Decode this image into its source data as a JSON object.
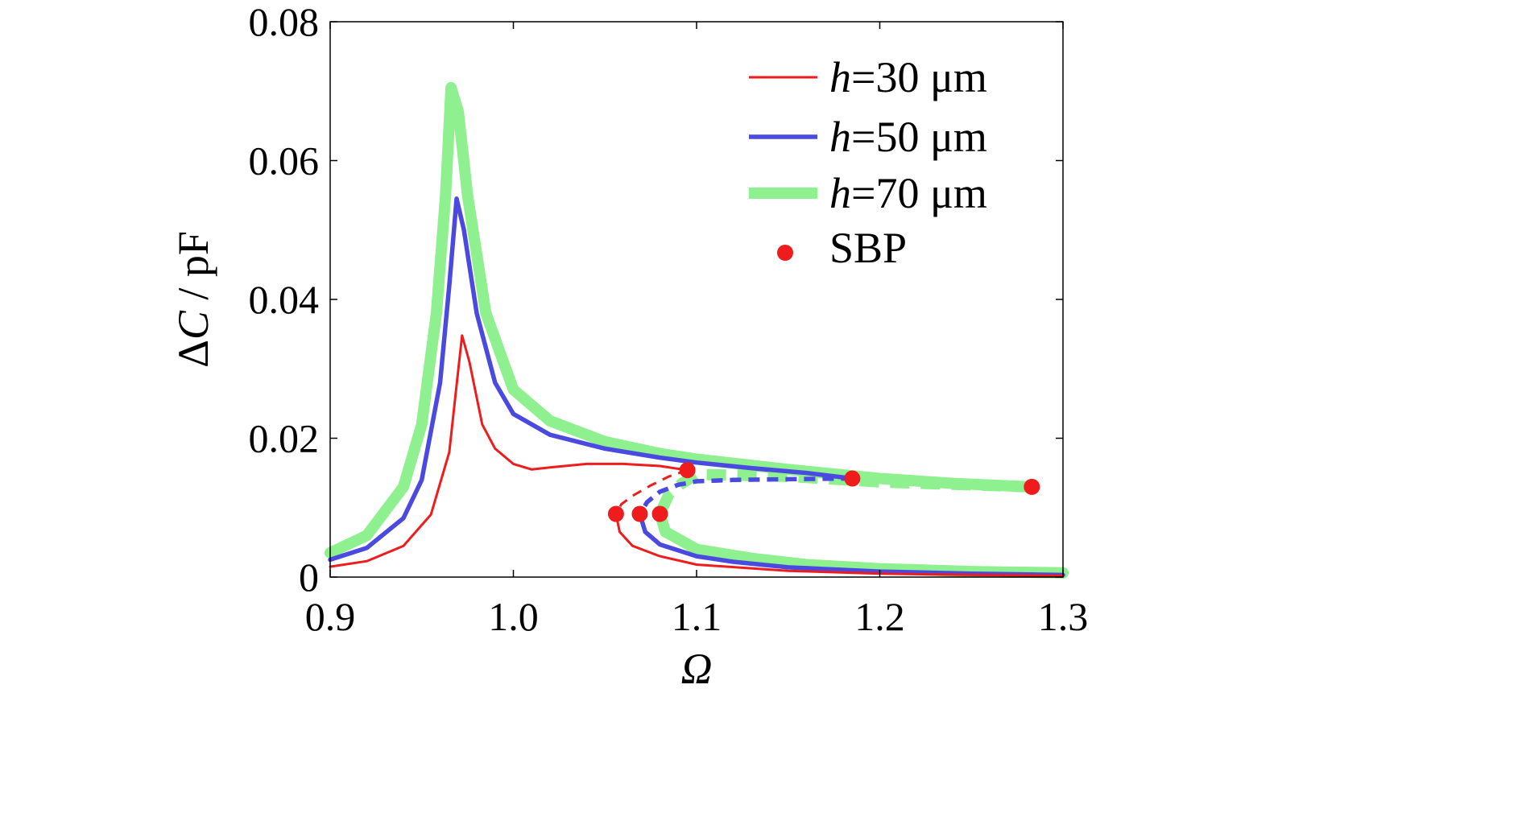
{
  "chart_data": {
    "type": "line",
    "title": "",
    "xlabel": "Ω",
    "ylabel_prefix": "ΔC",
    "ylabel": "ΔC / pF",
    "ylabel_symbol": "C",
    "ylabel_delta": "Δ",
    "ylabel_suffix": " / pF",
    "xlim": [
      0.9,
      1.3
    ],
    "ylim": [
      0,
      0.08
    ],
    "xticks": [
      0.9,
      1.0,
      1.1,
      1.2,
      1.3
    ],
    "xtick_labels": [
      "0.9",
      "1.0",
      "1.1",
      "1.2",
      "1.3"
    ],
    "yticks": [
      0,
      0.02,
      0.04,
      0.06,
      0.08
    ],
    "ytick_labels": [
      "0",
      "0.02",
      "0.04",
      "0.06",
      "0.08"
    ],
    "grid": false,
    "legend_position": "top-right",
    "series": [
      {
        "name": "h=30 μm",
        "legend_symbol": "h",
        "legend_rest": "=30 μm",
        "color": "#ee1c1c",
        "stable_upper": [
          [
            0.9,
            0.0015
          ],
          [
            0.92,
            0.0023
          ],
          [
            0.94,
            0.0045
          ],
          [
            0.955,
            0.009
          ],
          [
            0.965,
            0.018
          ],
          [
            0.97,
            0.03
          ],
          [
            0.972,
            0.0348
          ],
          [
            0.976,
            0.031
          ],
          [
            0.983,
            0.022
          ],
          [
            0.99,
            0.0185
          ],
          [
            1.0,
            0.0163
          ],
          [
            1.01,
            0.0155
          ],
          [
            1.02,
            0.0158
          ],
          [
            1.04,
            0.0163
          ],
          [
            1.06,
            0.0163
          ],
          [
            1.08,
            0.016
          ],
          [
            1.095,
            0.0154
          ]
        ],
        "unstable": [
          [
            1.095,
            0.0154
          ],
          [
            1.085,
            0.0145
          ],
          [
            1.075,
            0.0132
          ],
          [
            1.065,
            0.0117
          ],
          [
            1.059,
            0.0105
          ],
          [
            1.056,
            0.0091
          ]
        ],
        "stable_lower": [
          [
            1.056,
            0.0091
          ],
          [
            1.058,
            0.0065
          ],
          [
            1.065,
            0.0045
          ],
          [
            1.08,
            0.003
          ],
          [
            1.1,
            0.0018
          ],
          [
            1.15,
            0.0009
          ],
          [
            1.2,
            0.0005
          ],
          [
            1.25,
            0.0003
          ],
          [
            1.3,
            0.0002
          ]
        ],
        "sbp": [
          [
            1.095,
            0.0154
          ],
          [
            1.056,
            0.0091
          ]
        ]
      },
      {
        "name": "h=50 μm",
        "legend_symbol": "h",
        "legend_rest": "=50 μm",
        "color": "#4a4ae0",
        "stable_upper": [
          [
            0.9,
            0.0025
          ],
          [
            0.92,
            0.0042
          ],
          [
            0.94,
            0.0085
          ],
          [
            0.95,
            0.014
          ],
          [
            0.96,
            0.028
          ],
          [
            0.965,
            0.042
          ],
          [
            0.969,
            0.0545
          ],
          [
            0.973,
            0.05
          ],
          [
            0.98,
            0.038
          ],
          [
            0.99,
            0.028
          ],
          [
            1.0,
            0.0235
          ],
          [
            1.02,
            0.0205
          ],
          [
            1.05,
            0.0185
          ],
          [
            1.08,
            0.0172
          ],
          [
            1.1,
            0.0165
          ],
          [
            1.13,
            0.0157
          ],
          [
            1.16,
            0.015
          ],
          [
            1.185,
            0.0142
          ]
        ],
        "unstable": [
          [
            1.185,
            0.0142
          ],
          [
            1.15,
            0.0141
          ],
          [
            1.12,
            0.014
          ],
          [
            1.1,
            0.0138
          ],
          [
            1.09,
            0.0133
          ],
          [
            1.08,
            0.0123
          ],
          [
            1.073,
            0.0108
          ],
          [
            1.069,
            0.0091
          ]
        ],
        "stable_lower": [
          [
            1.069,
            0.0091
          ],
          [
            1.072,
            0.0065
          ],
          [
            1.08,
            0.0047
          ],
          [
            1.1,
            0.003
          ],
          [
            1.12,
            0.0022
          ],
          [
            1.15,
            0.0014
          ],
          [
            1.2,
            0.0008
          ],
          [
            1.25,
            0.0005
          ],
          [
            1.3,
            0.0003
          ]
        ],
        "sbp": [
          [
            1.185,
            0.0142
          ],
          [
            1.069,
            0.0091
          ]
        ]
      },
      {
        "name": "h=70 μm",
        "legend_symbol": "h",
        "legend_rest": "=70 μm",
        "color": "#8ef08e",
        "stable_upper": [
          [
            0.9,
            0.0035
          ],
          [
            0.92,
            0.006
          ],
          [
            0.94,
            0.013
          ],
          [
            0.95,
            0.022
          ],
          [
            0.958,
            0.038
          ],
          [
            0.963,
            0.055
          ],
          [
            0.966,
            0.0705
          ],
          [
            0.97,
            0.067
          ],
          [
            0.975,
            0.055
          ],
          [
            0.985,
            0.038
          ],
          [
            1.0,
            0.027
          ],
          [
            1.02,
            0.0225
          ],
          [
            1.05,
            0.0195
          ],
          [
            1.08,
            0.0178
          ],
          [
            1.1,
            0.017
          ],
          [
            1.15,
            0.0155
          ],
          [
            1.2,
            0.0142
          ],
          [
            1.24,
            0.0135
          ],
          [
            1.283,
            0.013
          ]
        ],
        "unstable": [
          [
            1.283,
            0.013
          ],
          [
            1.2,
            0.0137
          ],
          [
            1.15,
            0.0145
          ],
          [
            1.1,
            0.0148
          ],
          [
            1.092,
            0.0135
          ],
          [
            1.085,
            0.012
          ],
          [
            1.08,
            0.0091
          ]
        ],
        "stable_lower": [
          [
            1.08,
            0.0091
          ],
          [
            1.083,
            0.0065
          ],
          [
            1.09,
            0.0055
          ],
          [
            1.1,
            0.004
          ],
          [
            1.13,
            0.0027
          ],
          [
            1.16,
            0.0018
          ],
          [
            1.2,
            0.0012
          ],
          [
            1.25,
            0.0008
          ],
          [
            1.3,
            0.0006
          ]
        ],
        "sbp": [
          [
            1.283,
            0.013
          ],
          [
            1.08,
            0.0091
          ]
        ]
      }
    ],
    "sbp_legend": "SBP",
    "sbp_color": "#ee1c1c"
  }
}
